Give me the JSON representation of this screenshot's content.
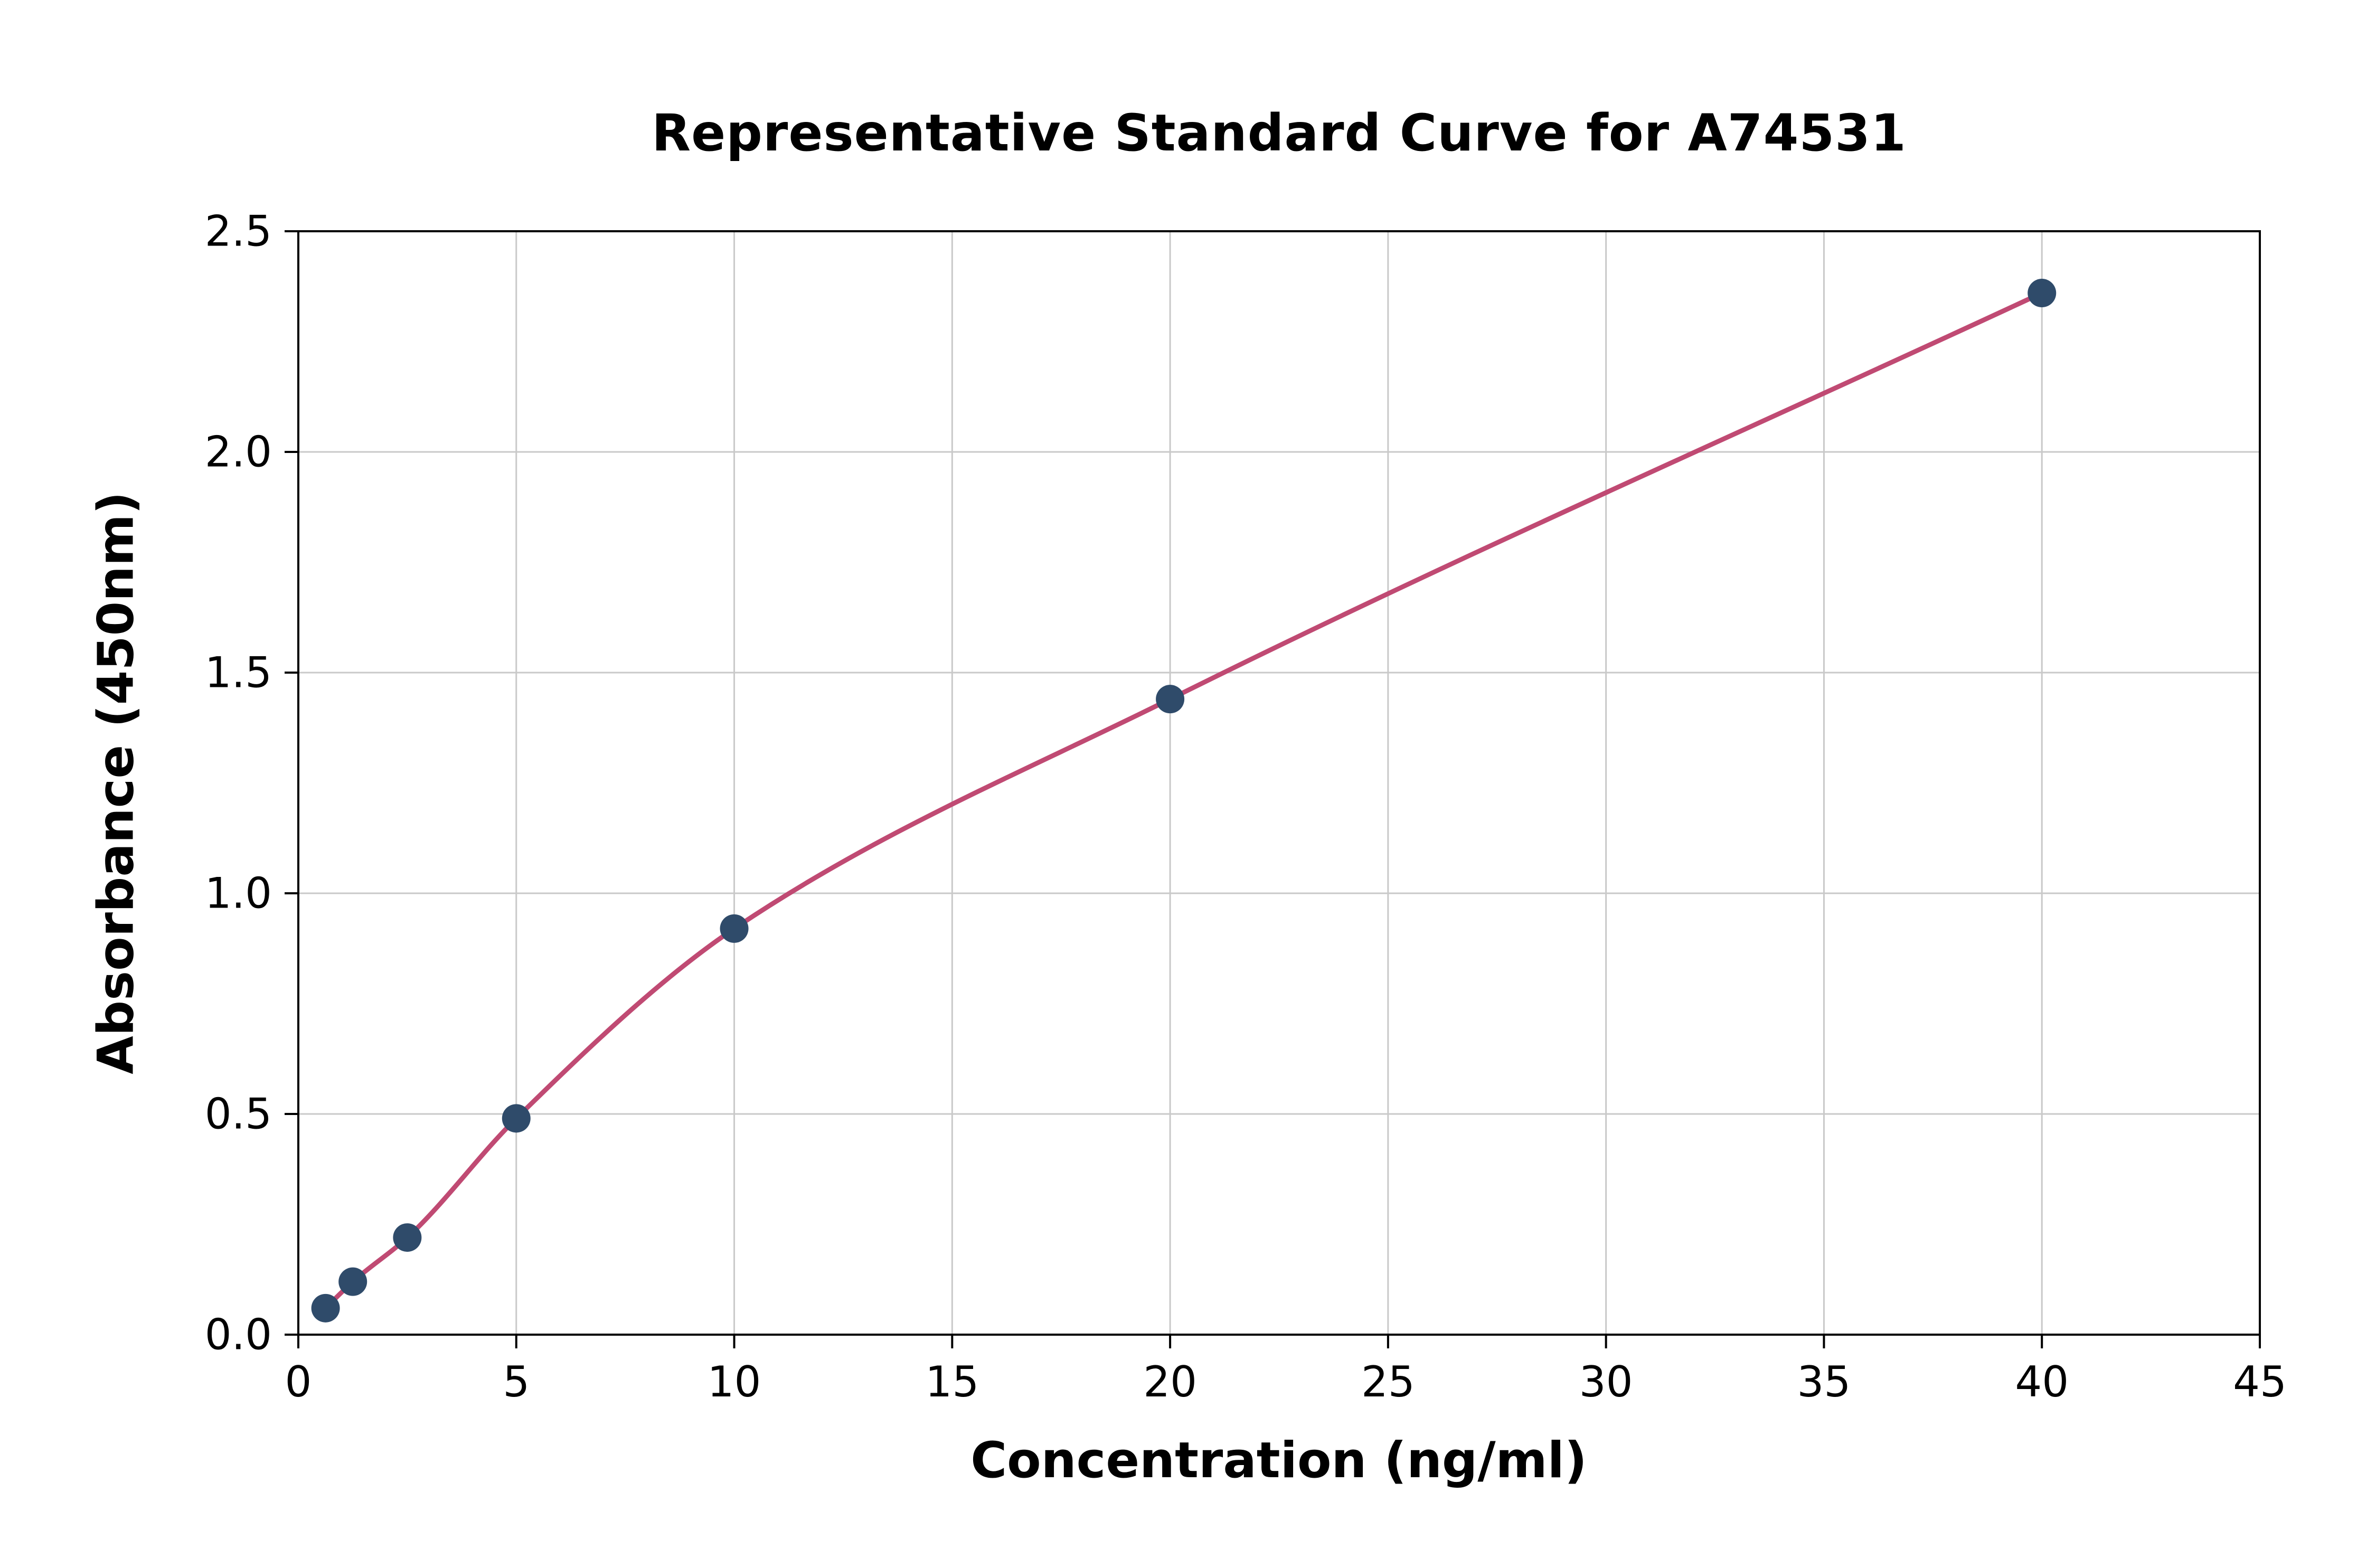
{
  "chart_data": {
    "type": "scatter",
    "title": "Representative Standard Curve for A74531",
    "xlabel": "Concentration (ng/ml)",
    "ylabel": "Absorbance (450nm)",
    "xlim": [
      0,
      45
    ],
    "ylim": [
      0,
      2.5
    ],
    "xticks": [
      0,
      5,
      10,
      15,
      20,
      25,
      30,
      35,
      40,
      45
    ],
    "xtick_labels": [
      "0",
      "5",
      "10",
      "15",
      "20",
      "25",
      "30",
      "35",
      "40",
      "45"
    ],
    "yticks": [
      0,
      0.5,
      1,
      1.5,
      2,
      2.5
    ],
    "ytick_labels": [
      "0.0",
      "0.5",
      "1.0",
      "1.5",
      "2.0",
      "2.5"
    ],
    "grid": true,
    "legend": "none",
    "points": {
      "x": [
        0.625,
        1.25,
        2.5,
        5,
        10,
        20,
        40
      ],
      "y": [
        0.06,
        0.12,
        0.22,
        0.49,
        0.92,
        1.44,
        2.36
      ]
    },
    "point_color": "#2f4b6a",
    "curve_color": "#c04a73",
    "grid_color": "#c9c9c9",
    "axis_color": "#000000",
    "text_color": "#000000",
    "background": "#ffffff"
  }
}
